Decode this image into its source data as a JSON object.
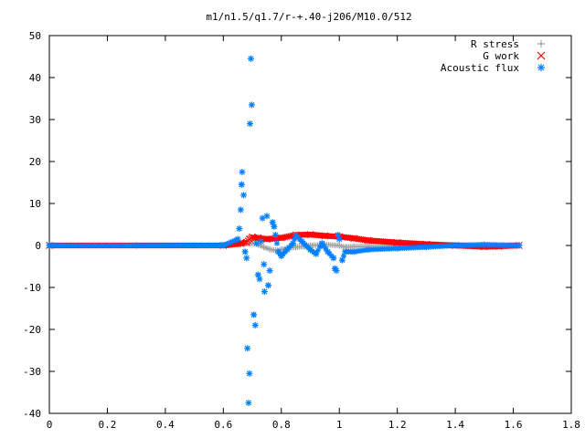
{
  "chart_data": {
    "type": "scatter",
    "title": "m1/n1.5/q1.7/r-+.40-j206/M10.0/512",
    "xlabel": "",
    "ylabel": "",
    "xlim": [
      0,
      1.8
    ],
    "ylim": [
      -40,
      50
    ],
    "x_ticks": [
      "0",
      "0.2",
      "0.4",
      "0.6",
      "0.8",
      "1",
      "1.2",
      "1.4",
      "1.6",
      "1.8"
    ],
    "y_ticks": [
      "-40",
      "-30",
      "-20",
      "-10",
      "0",
      "10",
      "20",
      "30",
      "40",
      "50"
    ],
    "grid": false,
    "legend_position": "top-right",
    "series": [
      {
        "name": "R stress",
        "marker": "+",
        "color": "#a0a0a0",
        "points": [
          [
            0.0,
            0.0
          ],
          [
            0.6,
            0.0
          ],
          [
            0.66,
            0.3
          ],
          [
            0.7,
            0.5
          ],
          [
            0.72,
            0.2
          ],
          [
            0.74,
            -0.4
          ],
          [
            0.76,
            -0.9
          ],
          [
            0.78,
            -1.2
          ],
          [
            0.8,
            -1.0
          ],
          [
            0.82,
            -0.6
          ],
          [
            0.85,
            -0.4
          ],
          [
            0.88,
            -0.2
          ],
          [
            0.9,
            0.0
          ],
          [
            0.95,
            0.2
          ],
          [
            1.0,
            0.0
          ],
          [
            1.02,
            -0.4
          ],
          [
            1.05,
            -0.3
          ],
          [
            1.1,
            -0.2
          ],
          [
            1.2,
            0.0
          ],
          [
            1.4,
            0.1
          ],
          [
            1.62,
            0.1
          ]
        ]
      },
      {
        "name": "G work",
        "marker": "x",
        "color": "#ff0000",
        "points": [
          [
            0.0,
            0.0
          ],
          [
            0.6,
            0.0
          ],
          [
            0.66,
            0.5
          ],
          [
            0.68,
            0.8
          ],
          [
            0.69,
            1.5
          ],
          [
            0.7,
            2.0
          ],
          [
            0.72,
            1.8
          ],
          [
            0.75,
            1.5
          ],
          [
            0.8,
            1.8
          ],
          [
            0.85,
            2.5
          ],
          [
            0.9,
            2.6
          ],
          [
            0.95,
            2.3
          ],
          [
            1.0,
            2.1
          ],
          [
            1.05,
            1.7
          ],
          [
            1.1,
            1.2
          ],
          [
            1.2,
            0.7
          ],
          [
            1.3,
            0.3
          ],
          [
            1.4,
            0.0
          ],
          [
            1.5,
            -0.3
          ],
          [
            1.55,
            -0.2
          ],
          [
            1.62,
            0.0
          ]
        ]
      },
      {
        "name": "Acoustic flux",
        "marker": "*",
        "color": "#0080ff",
        "points": [
          [
            0.0,
            0.0
          ],
          [
            0.3,
            0.0
          ],
          [
            0.6,
            0.0
          ],
          [
            0.65,
            1.5
          ],
          [
            0.655,
            4.0
          ],
          [
            0.66,
            8.5
          ],
          [
            0.663,
            14.5
          ],
          [
            0.665,
            17.5
          ],
          [
            0.67,
            12.0
          ],
          [
            0.675,
            -1.5
          ],
          [
            0.68,
            -3.0
          ],
          [
            0.683,
            -24.5
          ],
          [
            0.687,
            -37.5
          ],
          [
            0.69,
            -30.5
          ],
          [
            0.692,
            29.0
          ],
          [
            0.695,
            44.5
          ],
          [
            0.698,
            33.5
          ],
          [
            0.705,
            -16.5
          ],
          [
            0.71,
            -19.0
          ],
          [
            0.715,
            0.5
          ],
          [
            0.72,
            -7.0
          ],
          [
            0.725,
            -8.0
          ],
          [
            0.73,
            1.0
          ],
          [
            0.735,
            6.5
          ],
          [
            0.74,
            -4.5
          ],
          [
            0.742,
            -11.0
          ],
          [
            0.75,
            7.0
          ],
          [
            0.755,
            -9.5
          ],
          [
            0.76,
            -6.0
          ],
          [
            0.77,
            5.5
          ],
          [
            0.775,
            4.5
          ],
          [
            0.78,
            2.5
          ],
          [
            0.79,
            -1.5
          ],
          [
            0.8,
            -2.5
          ],
          [
            0.82,
            -1.0
          ],
          [
            0.84,
            0.5
          ],
          [
            0.85,
            2.5
          ],
          [
            0.87,
            1.0
          ],
          [
            0.9,
            -1.0
          ],
          [
            0.92,
            -2.0
          ],
          [
            0.94,
            0.5
          ],
          [
            0.96,
            -1.5
          ],
          [
            0.98,
            -3.0
          ],
          [
            0.985,
            -5.5
          ],
          [
            0.99,
            -6.0
          ],
          [
            0.995,
            2.5
          ],
          [
            1.0,
            1.5
          ],
          [
            1.01,
            -3.5
          ],
          [
            1.02,
            -1.5
          ],
          [
            1.05,
            -1.5
          ],
          [
            1.1,
            -1.0
          ],
          [
            1.2,
            -0.7
          ],
          [
            1.3,
            -0.4
          ],
          [
            1.4,
            0.0
          ],
          [
            1.5,
            0.2
          ],
          [
            1.62,
            0.0
          ]
        ]
      }
    ]
  }
}
